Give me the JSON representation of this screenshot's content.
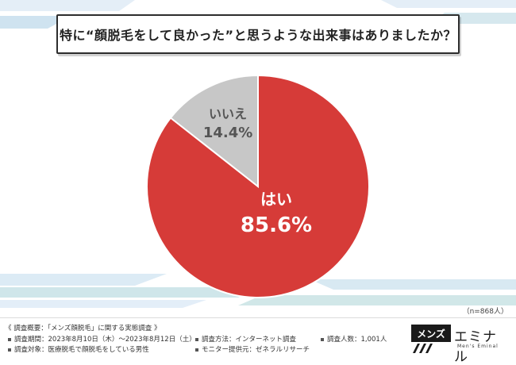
{
  "title": "特に“顔脱毛をして良かった”と思うような出来事はありましたか？",
  "chart_data": {
    "type": "pie",
    "slices": [
      {
        "label": "はい",
        "value": 85.6,
        "display": "85.6%",
        "color": "#d63b38"
      },
      {
        "label": "いいえ",
        "value": 14.4,
        "display": "14.4%",
        "color": "#c7c7c7"
      }
    ]
  },
  "sample_size": "（n=868人）",
  "survey": {
    "heading": "《 調査概要：「メンズ顔脱毛」に関する実態調査 》",
    "period": "調査期間：2023年8月10日（木）〜2023年8月12日（土）",
    "method": "調査方法：インターネット調査",
    "count": "調査人数：1,001人",
    "target": "調査対象：医療脱毛で顔脱毛をしている男性",
    "provider": "モニター提供元：ゼネラルリサーチ"
  },
  "logo": {
    "boxed": "メンズ",
    "main": "エミナル",
    "sub": "Men's Eminal"
  }
}
